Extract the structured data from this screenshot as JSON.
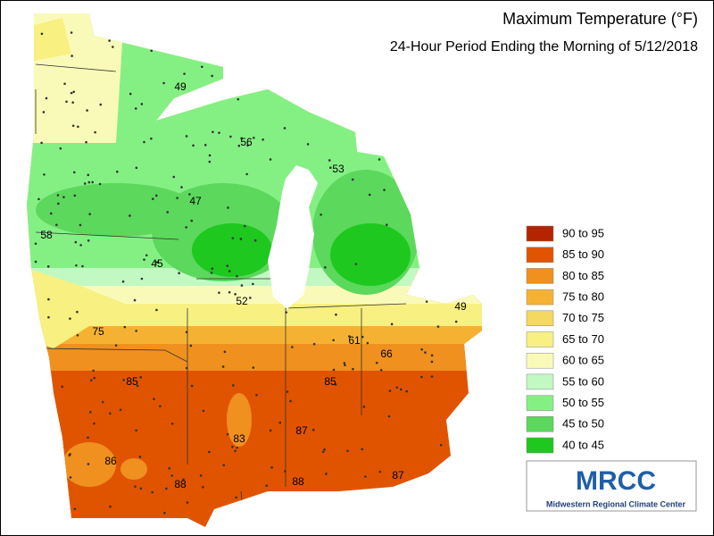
{
  "title": "Maximum Temperature (°F)",
  "subtitle": "24-Hour Period Ending the Morning of 5/12/2018",
  "legend": [
    {
      "label": "90 to 95",
      "color": "#b42400"
    },
    {
      "label": "85 to 90",
      "color": "#e05400"
    },
    {
      "label": "80 to 85",
      "color": "#f0901e"
    },
    {
      "label": "75 to 80",
      "color": "#f5b232"
    },
    {
      "label": "70 to 75",
      "color": "#f5d860"
    },
    {
      "label": "65 to 70",
      "color": "#f8f080"
    },
    {
      "label": "60 to 65",
      "color": "#fafab8"
    },
    {
      "label": "55 to 60",
      "color": "#c2f8c2"
    },
    {
      "label": "50 to 55",
      "color": "#84f084"
    },
    {
      "label": "45 to 50",
      "color": "#5cd85c"
    },
    {
      "label": "40 to 45",
      "color": "#1ec81e"
    }
  ],
  "map_labels": [
    49,
    56,
    53,
    47,
    58,
    45,
    52,
    49,
    75,
    61,
    66,
    85,
    85,
    83,
    87,
    86,
    88,
    88,
    87
  ],
  "logo": {
    "title": "MRCC",
    "subtitle": "Midwestern Regional Climate Center"
  }
}
